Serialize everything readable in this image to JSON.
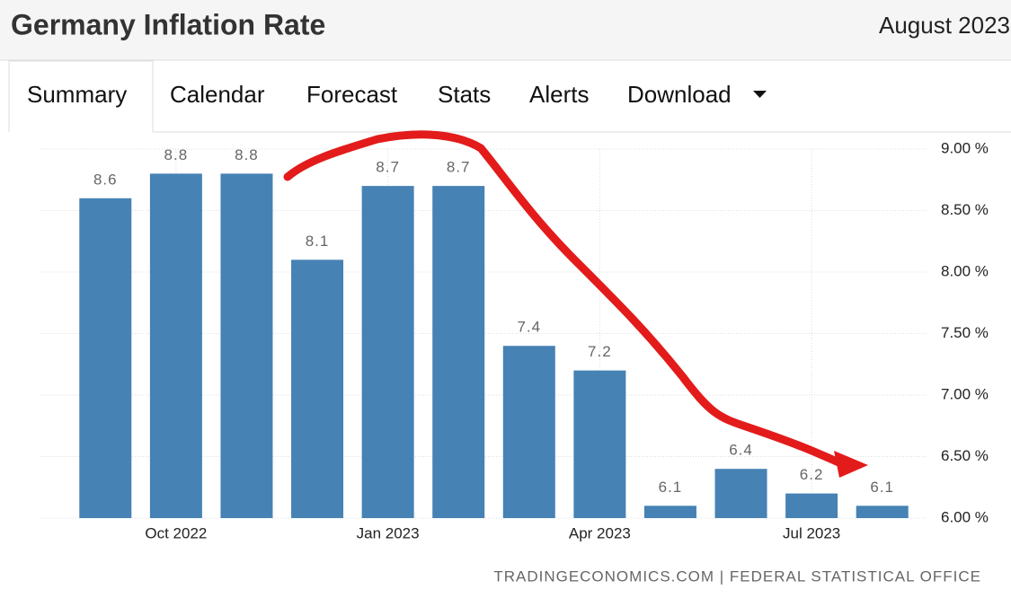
{
  "header": {
    "title": "Germany Inflation Rate",
    "date": "August 2023"
  },
  "tabs": [
    "Summary",
    "Calendar",
    "Forecast",
    "Stats",
    "Alerts",
    "Download"
  ],
  "chart_data": {
    "type": "bar",
    "categories": [
      null,
      "Oct 2022",
      null,
      null,
      "Jan 2023",
      null,
      null,
      "Apr 2023",
      null,
      null,
      "Jul 2023",
      null
    ],
    "values": [
      8.6,
      8.8,
      8.8,
      8.1,
      8.7,
      8.7,
      7.4,
      7.2,
      6.1,
      6.4,
      6.2,
      6.1
    ],
    "color": "#4682b4",
    "ylim": [
      6,
      9
    ],
    "yticks": [
      {
        "value": 6,
        "label": "6.00 %"
      },
      {
        "value": 6.5,
        "label": "6.50 %"
      },
      {
        "value": 7,
        "label": "7.00 %"
      },
      {
        "value": 7.5,
        "label": "7.50 %"
      },
      {
        "value": 8,
        "label": "8.00 %"
      },
      {
        "value": 8.5,
        "label": "8.50 %"
      },
      {
        "value": 9,
        "label": "9.00 %"
      }
    ],
    "grid": true,
    "source": "TRADINGECONOMICS.COM | FEDERAL STATISTICAL OFFICE"
  }
}
